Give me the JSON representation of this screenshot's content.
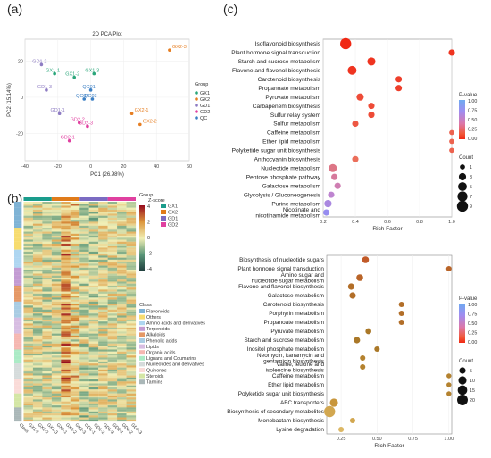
{
  "panels": {
    "a": "(a)",
    "b": "(b)",
    "c": "(c)"
  },
  "chart_data": [
    {
      "type": "scatter",
      "title": "2D PCA Plot",
      "xlabel": "PC1 (26.98%)",
      "ylabel": "PC2 (15.14%)",
      "xlim": [
        -40,
        60
      ],
      "ylim": [
        -35,
        32
      ],
      "xticks": [
        -40,
        -20,
        0,
        20,
        40,
        60
      ],
      "yticks": [
        -20,
        0,
        20
      ],
      "legend_title": "Group",
      "legend": [
        {
          "name": "GX1",
          "color": "#2aa67a"
        },
        {
          "name": "GX2",
          "color": "#e67e22"
        },
        {
          "name": "GD1",
          "color": "#8e7cc3"
        },
        {
          "name": "GD2",
          "color": "#e040a0"
        },
        {
          "name": "QC",
          "color": "#3b7fc4"
        }
      ],
      "points": [
        {
          "label": "GX2-3",
          "x": 48,
          "y": 26,
          "group": "GX2"
        },
        {
          "label": "GD1-2",
          "x": -30,
          "y": 18,
          "group": "GD1"
        },
        {
          "label": "GX1-1",
          "x": -22,
          "y": 13,
          "group": "GX1"
        },
        {
          "label": "GX1-2",
          "x": -10,
          "y": 11,
          "group": "GX1"
        },
        {
          "label": "GX1-3",
          "x": 2,
          "y": 13,
          "group": "GX1"
        },
        {
          "label": "GD1-3",
          "x": -27,
          "y": 4,
          "group": "GD1"
        },
        {
          "label": "QC01",
          "x": 0,
          "y": 4,
          "group": "QC"
        },
        {
          "label": "QC02",
          "x": -4,
          "y": -1,
          "group": "QC"
        },
        {
          "label": "QC03",
          "x": 1,
          "y": -1,
          "group": "QC"
        },
        {
          "label": "GD1-1",
          "x": -19,
          "y": -9,
          "group": "GD1"
        },
        {
          "label": "GD2-2",
          "x": -7,
          "y": -14,
          "group": "GD2"
        },
        {
          "label": "GD2-3",
          "x": -2,
          "y": -16,
          "group": "GD2"
        },
        {
          "label": "GX2-1",
          "x": 25,
          "y": -9,
          "group": "GX2"
        },
        {
          "label": "GX2-2",
          "x": 30,
          "y": -15,
          "group": "GX2"
        },
        {
          "label": "GD2-1",
          "x": -13,
          "y": -24,
          "group": "GD2"
        }
      ]
    },
    {
      "type": "heatmap",
      "legend_group_title": "Group",
      "legend_scale_title": "Z-score",
      "scale_ticks": [
        "4",
        "2",
        "0",
        "-2",
        "-4"
      ],
      "groups": [
        {
          "name": "GX1",
          "color": "#1a9c8c"
        },
        {
          "name": "GX2",
          "color": "#e07b1a"
        },
        {
          "name": "GD1",
          "color": "#7b6bc2"
        },
        {
          "name": "GD2",
          "color": "#e040a0"
        }
      ],
      "class_title": "Class",
      "classes": [
        {
          "name": "Flavonoids",
          "color": "#7fb3d5"
        },
        {
          "name": "Others",
          "color": "#f7dc6f"
        },
        {
          "name": "Amino acids and derivatives",
          "color": "#aed6f1"
        },
        {
          "name": "Terpenoids",
          "color": "#c39bd3"
        },
        {
          "name": "Alkaloids",
          "color": "#e59866"
        },
        {
          "name": "Phenolic acids",
          "color": "#a9cce3"
        },
        {
          "name": "Lipids",
          "color": "#d7bde2"
        },
        {
          "name": "Organic acids",
          "color": "#f5b7b1"
        },
        {
          "name": "Lignans and Coumarins",
          "color": "#abebc6"
        },
        {
          "name": "Nucleotides and derivatives",
          "color": "#d5dbdb"
        },
        {
          "name": "Quinones",
          "color": "#fadbd8"
        },
        {
          "name": "Steroids",
          "color": "#d4e6a5"
        },
        {
          "name": "Tannins",
          "color": "#aab7b8"
        }
      ],
      "columns": [
        "Class",
        "GX1-1",
        "GX1-2",
        "GX1-3",
        "GX2-1",
        "GX2-2",
        "GX2-3",
        "GD1-1",
        "GD1-2",
        "GD1-3",
        "GD2-1",
        "GD2-2",
        "GD2-3"
      ]
    },
    {
      "type": "scatter",
      "xlabel": "Rich Factor",
      "xlim": [
        0.2,
        1.0
      ],
      "xticks": [
        "0.2",
        "0.4",
        "0.6",
        "0.8",
        "1.0"
      ],
      "xtick_values": [
        0.2,
        0.4,
        0.6,
        0.8,
        1.0
      ],
      "color_title": "P-value",
      "color_ticks": [
        "1.00",
        "0.75",
        "0.50",
        "0.25",
        "0.00"
      ],
      "size_title": "Count",
      "size_ticks": [
        "1",
        "3",
        "5",
        "7",
        "9"
      ],
      "size_ticks_values": [
        1,
        3,
        5,
        7,
        9
      ],
      "terms": [
        {
          "name": "Isoflavonoid biosynthesis",
          "x": 0.34,
          "count": 9,
          "p": 0.0
        },
        {
          "name": "Plant hormone signal transduction",
          "x": 1.0,
          "count": 2,
          "p": 0.05
        },
        {
          "name": "Starch and sucrose metabolism",
          "x": 0.5,
          "count": 4,
          "p": 0.05
        },
        {
          "name": "Flavone and flavonol biosynthesis",
          "x": 0.38,
          "count": 5,
          "p": 0.05
        },
        {
          "name": "Carotenoid biosynthesis",
          "x": 0.67,
          "count": 2,
          "p": 0.1
        },
        {
          "name": "Propanoate metabolism",
          "x": 0.67,
          "count": 2,
          "p": 0.1
        },
        {
          "name": "Pyruvate metabolism",
          "x": 0.43,
          "count": 3,
          "p": 0.15
        },
        {
          "name": "Carbapenem biosynthesis",
          "x": 0.5,
          "count": 2,
          "p": 0.15
        },
        {
          "name": "Sulfur relay system",
          "x": 0.5,
          "count": 2,
          "p": 0.15
        },
        {
          "name": "Sulfur metabolism",
          "x": 0.4,
          "count": 2,
          "p": 0.2
        },
        {
          "name": "Caffeine metabolism",
          "x": 1.0,
          "count": 1,
          "p": 0.25
        },
        {
          "name": "Ether lipid metabolism",
          "x": 1.0,
          "count": 1,
          "p": 0.25
        },
        {
          "name": "Polyketide sugar unit biosynthesis",
          "x": 1.0,
          "count": 1,
          "p": 0.25
        },
        {
          "name": "Anthocyanin biosynthesis",
          "x": 0.4,
          "count": 2,
          "p": 0.3
        },
        {
          "name": "Nucleotide metabolism",
          "x": 0.26,
          "count": 4,
          "p": 0.4
        },
        {
          "name": "Pentose phosphate pathway",
          "x": 0.27,
          "count": 2,
          "p": 0.45
        },
        {
          "name": "Galactose metabolism",
          "x": 0.29,
          "count": 2,
          "p": 0.5
        },
        {
          "name": "Glycolysis / Gluconeogenesis",
          "x": 0.25,
          "count": 2,
          "p": 0.6
        },
        {
          "name": "Purine metabolism",
          "x": 0.23,
          "count": 3,
          "p": 0.7
        },
        {
          "name": "Nicotinate and nicotinamide metabolism",
          "x": 0.22,
          "count": 2,
          "p": 0.8
        }
      ]
    },
    {
      "type": "scatter",
      "xlabel": "Rich Factor",
      "xlim": [
        0.15,
        1.02
      ],
      "xticks": [
        "0.25",
        "0.50",
        "0.75",
        "1.00"
      ],
      "xtick_values": [
        0.25,
        0.5,
        0.75,
        1.0
      ],
      "color_title": "P-value",
      "color_ticks": [
        "1.00",
        "0.75",
        "0.50",
        "0.25",
        "0.00"
      ],
      "size_title": "Count",
      "size_ticks": [
        "5",
        "10",
        "15",
        "20"
      ],
      "size_ticks_values": [
        5,
        10,
        15,
        20
      ],
      "terms": [
        {
          "name": "Biosynthesis of nucleotide sugars",
          "x": 0.42,
          "count": 6,
          "p": 0.55
        },
        {
          "name": "Plant hormone signal transduction",
          "x": 1.0,
          "count": 3,
          "p": 0.6
        },
        {
          "name": "Amino sugar and nucleotide sugar metabolism",
          "x": 0.38,
          "count": 6,
          "p": 0.6
        },
        {
          "name": "Flavone and flavonol biosynthesis",
          "x": 0.32,
          "count": 5,
          "p": 0.65
        },
        {
          "name": "Galactose metabolism",
          "x": 0.33,
          "count": 5,
          "p": 0.65
        },
        {
          "name": "Carotenoid biosynthesis",
          "x": 0.67,
          "count": 3,
          "p": 0.65
        },
        {
          "name": "Porphyrin metabolism",
          "x": 0.67,
          "count": 3,
          "p": 0.65
        },
        {
          "name": "Propanoate metabolism",
          "x": 0.67,
          "count": 3,
          "p": 0.65
        },
        {
          "name": "Pyruvate metabolism",
          "x": 0.44,
          "count": 4,
          "p": 0.7
        },
        {
          "name": "Starch and sucrose metabolism",
          "x": 0.36,
          "count": 5,
          "p": 0.7
        },
        {
          "name": "Inositol phosphate metabolism",
          "x": 0.5,
          "count": 3,
          "p": 0.7
        },
        {
          "name": "Neomycin, kanamycin and gentamicin biosynthesis",
          "x": 0.4,
          "count": 3,
          "p": 0.75
        },
        {
          "name": "Valine, leucine and isoleucine biosynthesis",
          "x": 0.4,
          "count": 3,
          "p": 0.75
        },
        {
          "name": "Caffeine metabolism",
          "x": 1.0,
          "count": 2,
          "p": 0.75
        },
        {
          "name": "Ether lipid metabolism",
          "x": 1.0,
          "count": 2,
          "p": 0.75
        },
        {
          "name": "Polyketide sugar unit biosynthesis",
          "x": 1.0,
          "count": 2,
          "p": 0.75
        },
        {
          "name": "ABC transporters",
          "x": 0.2,
          "count": 10,
          "p": 0.85
        },
        {
          "name": "Biosynthesis of secondary metabolites",
          "x": 0.17,
          "count": 22,
          "p": 0.9
        },
        {
          "name": "Monobactam biosynthesis",
          "x": 0.33,
          "count": 3,
          "p": 0.9
        },
        {
          "name": "Lysine degradation",
          "x": 0.25,
          "count": 3,
          "p": 0.95
        }
      ]
    }
  ]
}
